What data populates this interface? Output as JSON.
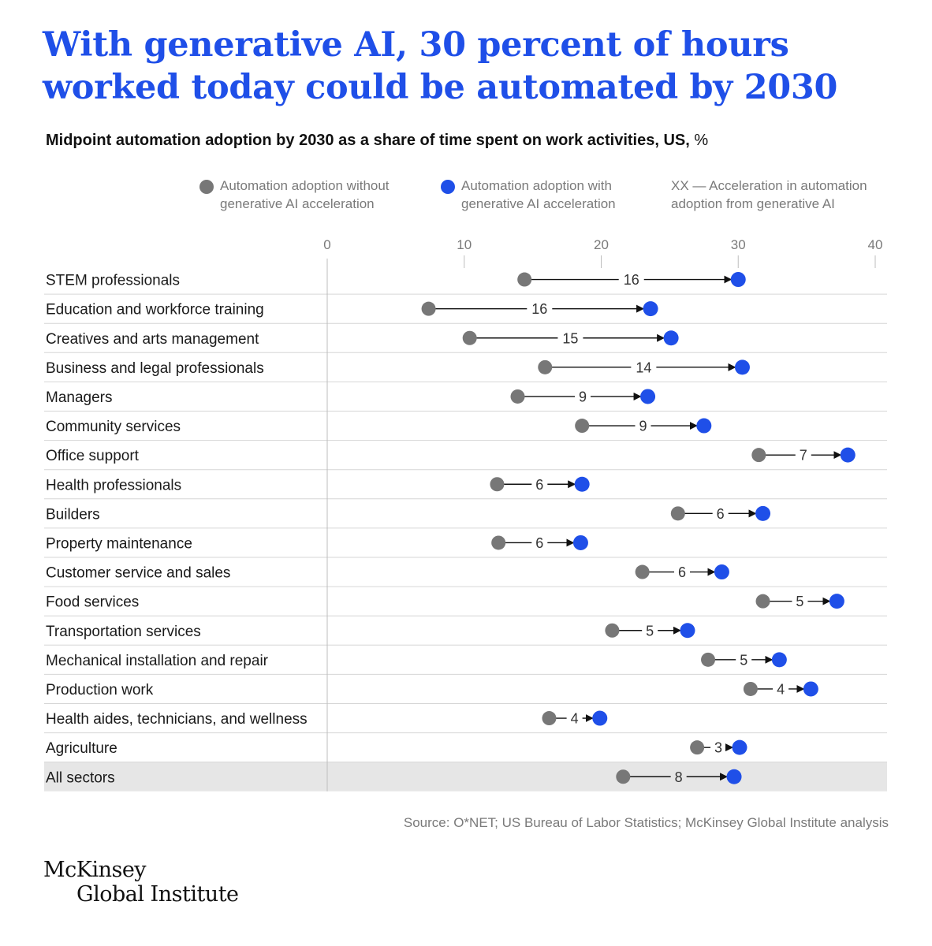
{
  "title": "With generative AI, 30 percent of hours worked today could be automated by 2030",
  "subtitle": "Midpoint automation adoption by 2030 as a share of time spent on work activities, US,",
  "subtitle_unit": "%",
  "legend": {
    "without": "Automation adoption without generative AI acceleration",
    "with": "Automation adoption with generative AI acceleration",
    "acceleration": "XX — Acceleration in automation adoption from generative AI"
  },
  "colors": {
    "without": "#777777",
    "with": "#1f4fe8",
    "title": "#1f4fe8",
    "highlight_row": "#e6e6e6"
  },
  "source": "Source: O*NET; US Bureau of Labor Statistics; McKinsey Global Institute analysis",
  "logo": {
    "line1": "McKinsey",
    "line2": "Global Institute"
  },
  "chart_data": {
    "type": "dumbbell",
    "xlim": [
      0,
      40
    ],
    "x_ticks": [
      0,
      10,
      20,
      30,
      40
    ],
    "series": [
      {
        "name": "Automation adoption without generative AI acceleration",
        "key": "without"
      },
      {
        "name": "Automation adoption with generative AI acceleration",
        "key": "with"
      }
    ],
    "rows": [
      {
        "label": "STEM professionals",
        "without": 14.4,
        "with": 30.0,
        "acceleration": "16"
      },
      {
        "label": "Education and workforce training",
        "without": 7.4,
        "with": 23.6,
        "acceleration": "16"
      },
      {
        "label": "Creatives and arts management",
        "without": 10.4,
        "with": 25.1,
        "acceleration": "15"
      },
      {
        "label": "Business and legal professionals",
        "without": 15.9,
        "with": 30.3,
        "acceleration": "14"
      },
      {
        "label": "Managers",
        "without": 13.9,
        "with": 23.4,
        "acceleration": "9"
      },
      {
        "label": "Community services",
        "without": 18.6,
        "with": 27.5,
        "acceleration": "9"
      },
      {
        "label": "Office support",
        "without": 31.5,
        "with": 38.0,
        "acceleration": "7"
      },
      {
        "label": "Health professionals",
        "without": 12.4,
        "with": 18.6,
        "acceleration": "6"
      },
      {
        "label": "Builders",
        "without": 25.6,
        "with": 31.8,
        "acceleration": "6"
      },
      {
        "label": "Property maintenance",
        "without": 12.5,
        "with": 18.5,
        "acceleration": "6"
      },
      {
        "label": "Customer service and sales",
        "without": 23.0,
        "with": 28.8,
        "acceleration": "6"
      },
      {
        "label": "Food services",
        "without": 31.8,
        "with": 37.2,
        "acceleration": "5"
      },
      {
        "label": "Transportation services",
        "without": 20.8,
        "with": 26.3,
        "acceleration": "5"
      },
      {
        "label": "Mechanical installation and repair",
        "without": 27.8,
        "with": 33.0,
        "acceleration": "5"
      },
      {
        "label": "Production work",
        "without": 30.9,
        "with": 35.3,
        "acceleration": "4"
      },
      {
        "label": "Health aides, technicians, and wellness",
        "without": 16.2,
        "with": 19.9,
        "acceleration": "4"
      },
      {
        "label": "Agriculture",
        "without": 27.0,
        "with": 30.1,
        "acceleration": "3"
      },
      {
        "label": "All sectors",
        "without": 21.6,
        "with": 29.7,
        "acceleration": "8",
        "highlight": true
      }
    ]
  }
}
